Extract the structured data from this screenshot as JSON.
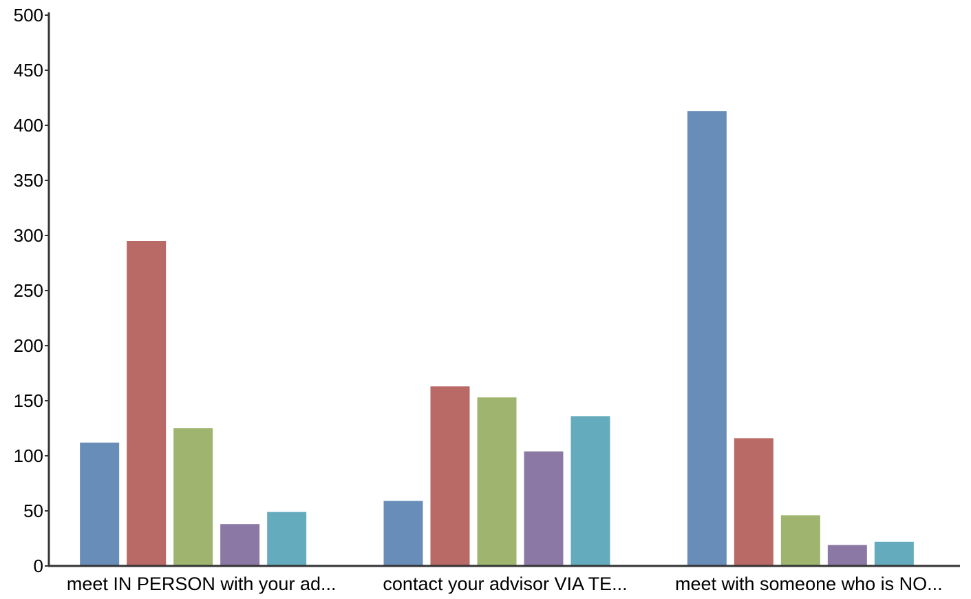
{
  "chart_data": {
    "type": "bar",
    "categories": [
      "meet IN PERSON with your ad...",
      "contact your advisor VIA TE...",
      "meet with someone who is NO..."
    ],
    "series": [
      {
        "color": "#688db8",
        "values": [
          112,
          59,
          413
        ]
      },
      {
        "color": "#ba6a66",
        "values": [
          295,
          163,
          116
        ]
      },
      {
        "color": "#9fb56f",
        "values": [
          125,
          153,
          46
        ]
      },
      {
        "color": "#8b78a4",
        "values": [
          38,
          104,
          19
        ]
      },
      {
        "color": "#64abbd",
        "values": [
          49,
          136,
          22
        ]
      }
    ],
    "yticks": [
      "0",
      "50",
      "100",
      "150",
      "200",
      "250",
      "300",
      "350",
      "400",
      "450",
      "500"
    ],
    "ylim": [
      0,
      500
    ],
    "grid": false,
    "title": "",
    "xlabel": "",
    "ylabel": ""
  }
}
